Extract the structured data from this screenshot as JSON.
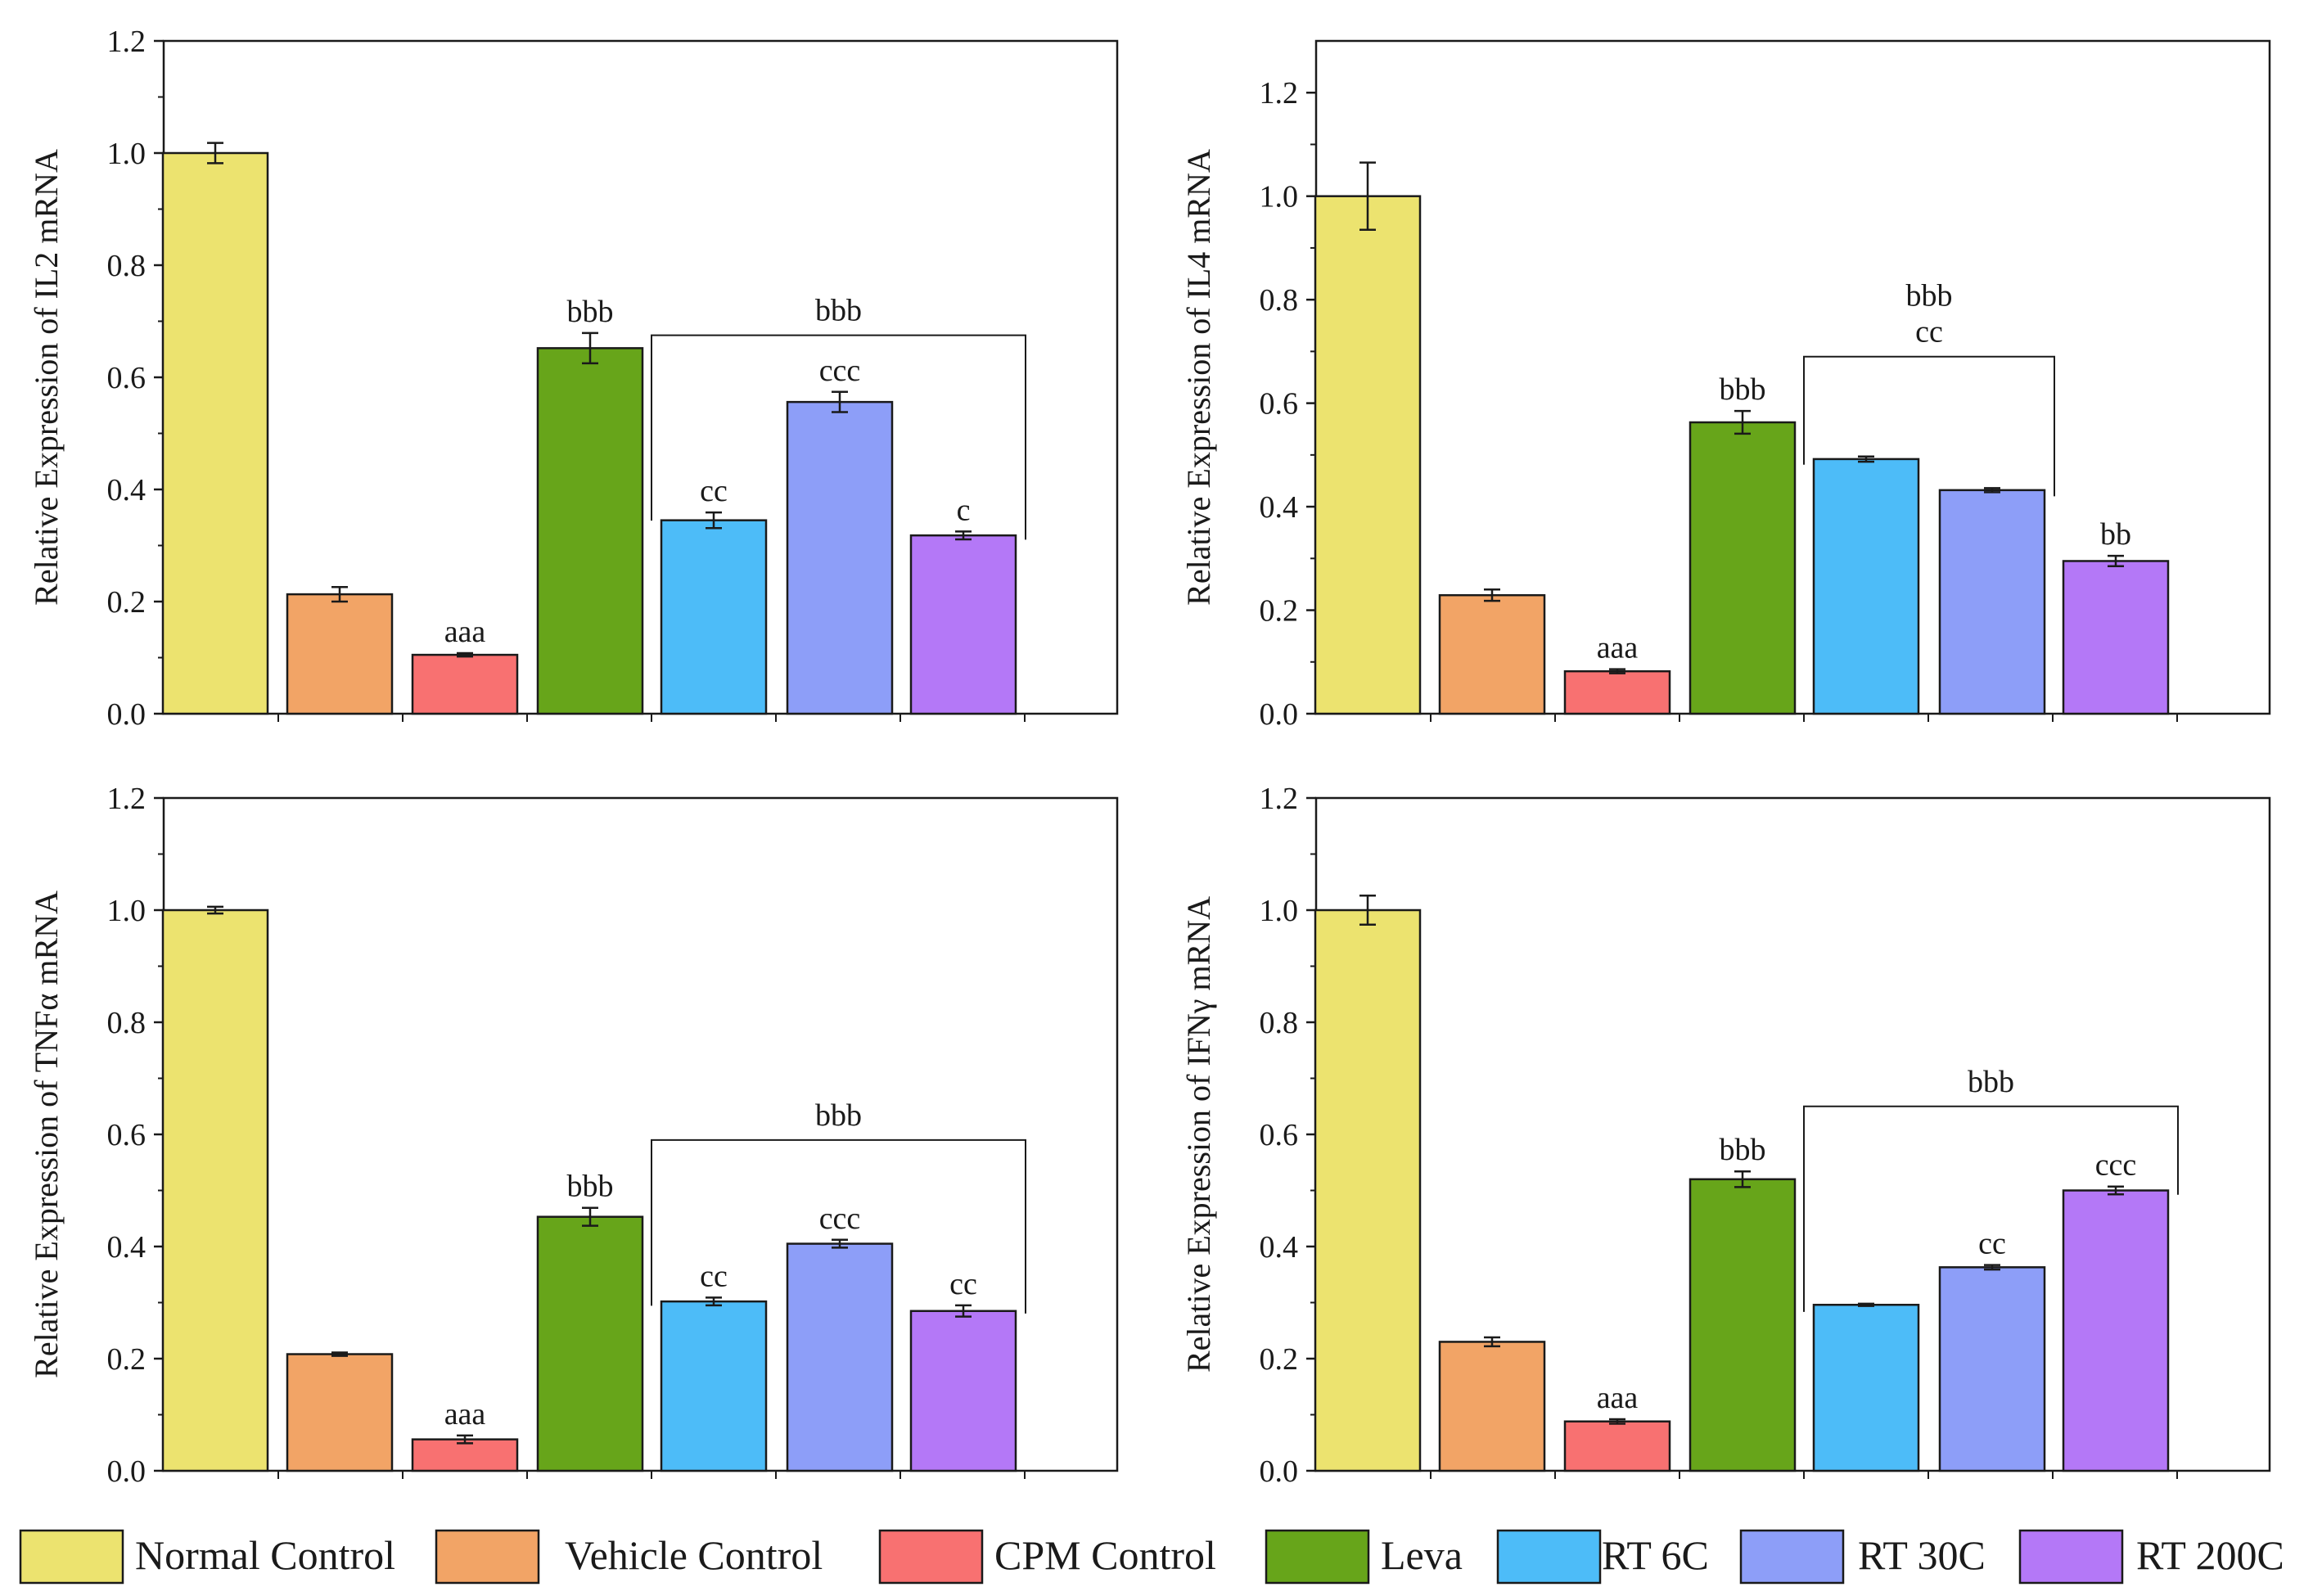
{
  "legend": {
    "placement": "bottom",
    "items": [
      {
        "label": "Normal Control",
        "color": "#ECE36F"
      },
      {
        "label": "Vehicle Control",
        "color": "#F2A466"
      },
      {
        "label": "CPM Control",
        "color": "#F87171"
      },
      {
        "label": "Leva",
        "color": "#67A51A"
      },
      {
        "label": "RT 6C",
        "color": "#4DBCF8"
      },
      {
        "label": "RT 30C",
        "color": "#8D9EF8"
      },
      {
        "label": "RT 200C",
        "color": "#B478F7"
      }
    ]
  },
  "chart_data": [
    {
      "type": "bar",
      "ylabel": "Relative Expression of IL2 mRNA",
      "ylim": [
        0,
        1.2
      ],
      "yticks": [
        "0.0",
        "0.2",
        "0.4",
        "0.6",
        "0.8",
        "1.0",
        "1.2"
      ],
      "categories": [
        "Normal Control",
        "Vehicle Control",
        "CPM Control",
        "Leva",
        "RT 6C",
        "RT 30C",
        "RT 200C"
      ],
      "values": [
        1.0,
        0.213,
        0.105,
        0.652,
        0.345,
        0.556,
        0.318
      ],
      "errors": [
        0.018,
        0.013,
        0.003,
        0.027,
        0.014,
        0.018,
        0.007
      ],
      "annotations": [
        "",
        "",
        "aaa",
        "bbb",
        "cc",
        "ccc",
        "c"
      ],
      "bracket": {
        "from": 4,
        "to": 6,
        "label": "bbb",
        "level": 0.675
      }
    },
    {
      "type": "bar",
      "ylabel": "Relative Expression of IL4 mRNA",
      "ylim": [
        0,
        1.3
      ],
      "yticks": [
        "0.0",
        "0.2",
        "0.4",
        "0.6",
        "0.8",
        "1.0",
        "1.2"
      ],
      "categories": [
        "Normal Control",
        "Vehicle Control",
        "CPM Control",
        "Leva",
        "RT 6C",
        "RT 30C",
        "RT 200C"
      ],
      "values": [
        1.0,
        0.229,
        0.082,
        0.563,
        0.492,
        0.432,
        0.295
      ],
      "errors": [
        0.065,
        0.011,
        0.004,
        0.022,
        0.005,
        0.004,
        0.01
      ],
      "annotations": [
        "",
        "",
        "aaa",
        "bbb",
        "",
        "",
        "bb"
      ],
      "bracket": {
        "from": 4,
        "to": 5,
        "label": "bbb",
        "label2": "cc",
        "level": 0.69
      }
    },
    {
      "type": "bar",
      "ylabel": "Relative Expression of TNFα mRNA",
      "ylim": [
        0,
        1.2
      ],
      "yticks": [
        "0.0",
        "0.2",
        "0.4",
        "0.6",
        "0.8",
        "1.0",
        "1.2"
      ],
      "categories": [
        "Normal Control",
        "Vehicle Control",
        "CPM Control",
        "Leva",
        "RT 6C",
        "RT 30C",
        "RT 200C"
      ],
      "values": [
        1.0,
        0.208,
        0.056,
        0.453,
        0.302,
        0.405,
        0.285
      ],
      "errors": [
        0.006,
        0.003,
        0.007,
        0.016,
        0.007,
        0.007,
        0.01
      ],
      "annotations": [
        "",
        "",
        "aaa",
        "bbb",
        "cc",
        "ccc",
        "cc"
      ],
      "bracket": {
        "from": 4,
        "to": 6,
        "label": "bbb",
        "level": 0.59
      }
    },
    {
      "type": "bar",
      "ylabel": "Relative Expression of IFNγ mRNA",
      "ylim": [
        0,
        1.2
      ],
      "yticks": [
        "0.0",
        "0.2",
        "0.4",
        "0.6",
        "0.8",
        "1.0",
        "1.2"
      ],
      "categories": [
        "Normal Control",
        "Vehicle Control",
        "CPM Control",
        "Leva",
        "RT 6C",
        "RT 30C",
        "RT 200C"
      ],
      "values": [
        1.0,
        0.23,
        0.088,
        0.52,
        0.296,
        0.363,
        0.5
      ],
      "errors": [
        0.026,
        0.008,
        0.004,
        0.014,
        0.002,
        0.004,
        0.007
      ],
      "annotations": [
        "",
        "",
        "aaa",
        "bbb",
        "",
        "cc",
        "ccc"
      ],
      "bracket": {
        "from": 4,
        "to": 6,
        "label": "bbb",
        "level": 0.65
      }
    }
  ]
}
